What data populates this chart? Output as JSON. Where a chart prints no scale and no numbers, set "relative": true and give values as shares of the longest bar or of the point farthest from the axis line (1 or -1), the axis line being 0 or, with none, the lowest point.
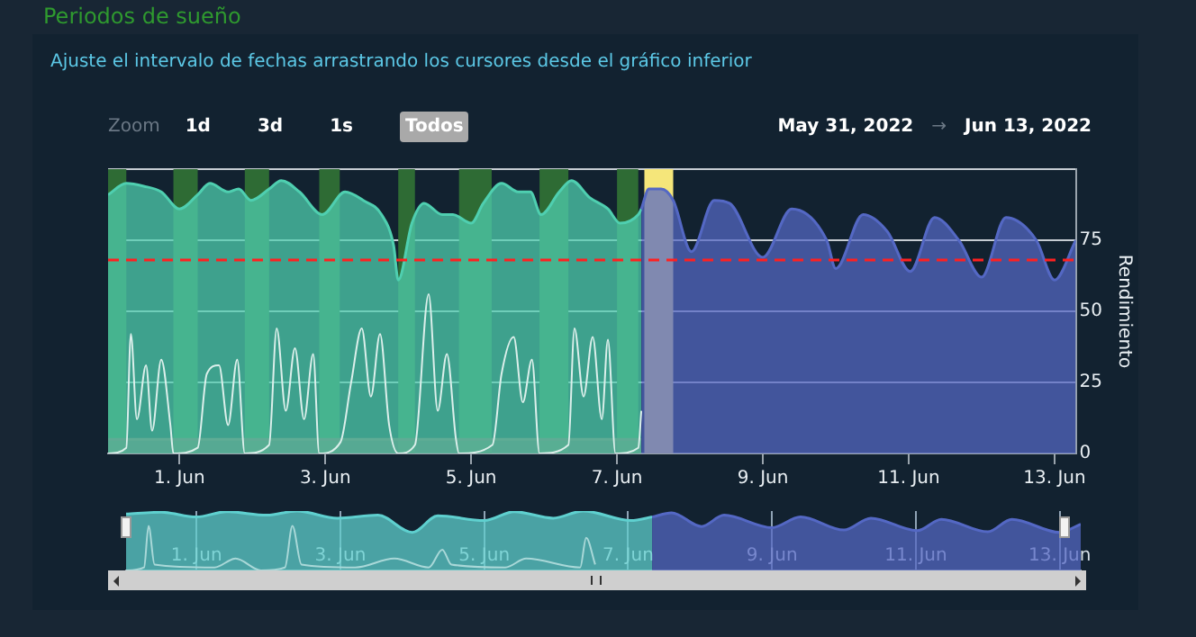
{
  "chart_data": [
    {
      "type": "area",
      "title": "Periodos de sueño",
      "subtitle": "Ajuste el intervalo de fechas arrastrando los cursores desde el gráfico inferior",
      "annotations": [
        "Zoom",
        "1d",
        "3d",
        "1s",
        "Todos",
        "May 31, 2022",
        "→",
        "Jun 13, 2022"
      ],
      "ylabel": "Rendimiento",
      "marker": "none",
      "grid": "y",
      "legend": false,
      "xlim": [
        "2022-05-31T00:30",
        "2022-06-13T07:00"
      ],
      "xticks": [
        {
          "value": "2022-06-01",
          "label": "1. Jun"
        },
        {
          "value": "2022-06-03",
          "label": "3. Jun"
        },
        {
          "value": "2022-06-05",
          "label": "5. Jun"
        },
        {
          "value": "2022-06-07",
          "label": "7. Jun"
        },
        {
          "value": "2022-06-09",
          "label": "9. Jun"
        },
        {
          "value": "2022-06-11",
          "label": "11. Jun"
        },
        {
          "value": "2022-06-13",
          "label": "13. Jun"
        }
      ],
      "ylim": [
        0,
        100
      ],
      "yticks": [
        0,
        25,
        50,
        75,
        {
          "value": 100,
          "label": null
        }
      ],
      "bands": [
        {
          "axis": "x",
          "from": "2022-05-31T00:30",
          "to": "2022-05-31T06:30",
          "color": "#2e6b34"
        },
        {
          "axis": "x",
          "from": "2022-05-31T22:00",
          "to": "2022-06-01T06:00",
          "color": "#2e6b34"
        },
        {
          "axis": "x",
          "from": "2022-06-01T21:30",
          "to": "2022-06-02T05:30",
          "color": "#2e6b34"
        },
        {
          "axis": "x",
          "from": "2022-06-02T22:00",
          "to": "2022-06-03T04:45",
          "color": "#2e6b34"
        },
        {
          "axis": "x",
          "from": "2022-06-04T00:00",
          "to": "2022-06-04T05:30",
          "color": "#2e6b34"
        },
        {
          "axis": "x",
          "from": "2022-06-04T20:00",
          "to": "2022-06-05T06:45",
          "color": "#2e6b34"
        },
        {
          "axis": "x",
          "from": "2022-06-05T22:30",
          "to": "2022-06-06T08:00",
          "color": "#2e6b34"
        },
        {
          "axis": "x",
          "from": "2022-06-07T00:00",
          "to": "2022-06-07T07:00",
          "color": "#2e6b34"
        },
        {
          "axis": "x",
          "from": "2022-06-07T09:00",
          "to": "2022-06-07T18:30",
          "color": "#f5e67a"
        }
      ],
      "ref_lines": [
        {
          "axis": "y",
          "value": 68,
          "color": "#ff2020",
          "line_style": "dashed"
        }
      ],
      "series": [
        {
          "type": "area",
          "color": "#8c4b4b",
          "x": [
            "2022-05-31T00:30",
            "2022-06-07T08:00"
          ],
          "values": [
            5,
            5
          ]
        },
        {
          "type": "area",
          "color": "#4fcfb0",
          "x": [
            "2022-05-31T00:30",
            "2022-05-31T06:30",
            "2022-05-31T12:15",
            "2022-05-31T18:00",
            "2022-06-01T00:00",
            "2022-06-01T06:00",
            "2022-06-01T10:00",
            "2022-06-01T16:00",
            "2022-06-01T19:30",
            "2022-06-01T23:30",
            "2022-06-02T05:30",
            "2022-06-02T09:30",
            "2022-06-02T15:30",
            "2022-06-02T23:00",
            "2022-06-03T06:30",
            "2022-06-03T12:30",
            "2022-06-03T18:30",
            "2022-06-03T22:30",
            "2022-06-04T00:00",
            "2022-06-04T04:30",
            "2022-06-04T08:30",
            "2022-06-04T14:30",
            "2022-06-04T18:00",
            "2022-06-05T00:00",
            "2022-06-05T04:00",
            "2022-06-05T10:00",
            "2022-06-05T15:30",
            "2022-06-05T19:30",
            "2022-06-05T23:00",
            "2022-06-06T05:00",
            "2022-06-06T09:00",
            "2022-06-06T15:00",
            "2022-06-06T21:00",
            "2022-06-07T01:00",
            "2022-06-07T07:00",
            "2022-06-07T08:00"
          ],
          "values": [
            91,
            95,
            94,
            92,
            86,
            91,
            95,
            92,
            93,
            89,
            93,
            96,
            92,
            84,
            92,
            89,
            84,
            73,
            61,
            81,
            88,
            84,
            84,
            81,
            88,
            95,
            92,
            92,
            84,
            92,
            96,
            90,
            86,
            81,
            84,
            86
          ]
        },
        {
          "type": "area",
          "color": "#5468c4",
          "x": [
            "2022-06-07T08:00",
            "2022-06-07T10:30",
            "2022-06-07T14:30",
            "2022-06-07T18:30",
            "2022-06-08T00:30",
            "2022-06-08T08:00",
            "2022-06-08T13:00",
            "2022-06-09T00:00",
            "2022-06-09T09:30",
            "2022-06-09T21:00",
            "2022-06-10T00:00",
            "2022-06-10T09:00",
            "2022-06-10T17:00",
            "2022-06-11T00:30",
            "2022-06-11T08:30",
            "2022-06-11T16:30",
            "2022-06-12T00:00",
            "2022-06-12T08:00",
            "2022-06-12T18:00",
            "2022-06-13T00:00",
            "2022-06-13T07:00"
          ],
          "values": [
            86,
            93,
            93,
            89,
            71,
            89,
            88,
            69,
            86,
            75,
            65,
            84,
            78,
            64,
            83,
            75,
            62,
            83,
            75,
            61,
            75
          ]
        },
        {
          "type": "line",
          "color": "#dcefeb",
          "x": [
            "2022-05-31T00:30",
            "2022-05-31T06:30",
            "2022-05-31T08:00",
            "2022-05-31T10:00",
            "2022-05-31T13:00",
            "2022-05-31T15:00",
            "2022-05-31T18:00",
            "2022-05-31T21:00",
            "2022-05-31T22:00",
            "2022-06-01T06:00",
            "2022-06-01T09:00",
            "2022-06-01T13:00",
            "2022-06-01T16:00",
            "2022-06-01T19:00",
            "2022-06-01T21:30",
            "2022-06-02T05:30",
            "2022-06-02T08:00",
            "2022-06-02T11:00",
            "2022-06-02T14:00",
            "2022-06-02T17:00",
            "2022-06-02T20:00",
            "2022-06-02T22:00",
            "2022-06-03T05:00",
            "2022-06-03T08:30",
            "2022-06-03T12:00",
            "2022-06-03T15:00",
            "2022-06-03T18:00",
            "2022-06-03T21:00",
            "2022-06-04T00:00",
            "2022-06-04T05:30",
            "2022-06-04T10:00",
            "2022-06-04T13:00",
            "2022-06-04T16:00",
            "2022-06-04T19:00",
            "2022-06-04T20:00",
            "2022-06-05T07:00",
            "2022-06-05T10:00",
            "2022-06-05T14:00",
            "2022-06-05T17:00",
            "2022-06-05T20:00",
            "2022-06-05T22:30",
            "2022-06-06T08:00",
            "2022-06-06T10:00",
            "2022-06-06T13:00",
            "2022-06-06T16:00",
            "2022-06-06T19:00",
            "2022-06-06T21:00",
            "2022-06-06T23:30",
            "2022-06-07T07:00",
            "2022-06-07T08:00"
          ],
          "values": [
            0,
            2,
            42,
            12,
            31,
            8,
            33,
            10,
            0,
            2,
            28,
            31,
            10,
            33,
            0,
            3,
            44,
            15,
            37,
            12,
            35,
            0,
            4,
            25,
            44,
            20,
            42,
            10,
            0,
            3,
            56,
            15,
            35,
            5,
            0,
            3,
            28,
            41,
            18,
            33,
            0,
            3,
            44,
            20,
            41,
            12,
            40,
            0,
            2,
            15
          ]
        }
      ]
    },
    {
      "type": "area",
      "relative": true,
      "marker": "none",
      "legend": false,
      "grid": "x",
      "tick_labels": "x",
      "xlim": [
        "2022-05-31T00:30",
        "2022-06-13T07:00"
      ],
      "xticks": [
        {
          "value": "2022-06-01",
          "label": "1. Jun"
        },
        {
          "value": "2022-06-03",
          "label": "3. Jun"
        },
        {
          "value": "2022-06-05",
          "label": "5. Jun"
        },
        {
          "value": "2022-06-07",
          "label": "7. Jun"
        },
        {
          "value": "2022-06-09",
          "label": "9. Jun"
        },
        {
          "value": "2022-06-11",
          "label": "11. Jun"
        },
        {
          "value": "2022-06-13",
          "label": "13. Jun"
        }
      ],
      "series": [
        {
          "type": "area",
          "color": "#5fd0cf",
          "x": [
            "2022-05-31T00:30",
            "2022-05-31T12:15",
            "2022-06-01T00:00",
            "2022-06-01T10:00",
            "2022-06-01T23:30",
            "2022-06-02T09:30",
            "2022-06-02T23:00",
            "2022-06-03T12:30",
            "2022-06-04T00:00",
            "2022-06-04T08:30",
            "2022-06-05T00:00",
            "2022-06-05T10:00",
            "2022-06-05T23:00",
            "2022-06-06T09:00",
            "2022-06-07T01:00",
            "2022-06-07T08:00"
          ],
          "values": [
            0.95,
            0.98,
            0.9,
            0.99,
            0.93,
            1,
            0.88,
            0.93,
            0.64,
            0.92,
            0.84,
            0.99,
            0.88,
            1,
            0.84,
            0.9
          ]
        },
        {
          "type": "area",
          "color": "#5468c4",
          "x": [
            "2022-06-07T08:00",
            "2022-06-07T14:30",
            "2022-06-08T00:30",
            "2022-06-08T08:00",
            "2022-06-09T00:00",
            "2022-06-09T09:30",
            "2022-06-10T00:00",
            "2022-06-10T09:00",
            "2022-06-11T00:30",
            "2022-06-11T08:30",
            "2022-06-12T00:00",
            "2022-06-12T08:00",
            "2022-06-13T00:00",
            "2022-06-13T07:00"
          ],
          "values": [
            0.9,
            0.97,
            0.74,
            0.93,
            0.72,
            0.9,
            0.68,
            0.88,
            0.67,
            0.86,
            0.65,
            0.86,
            0.64,
            0.78
          ]
        },
        {
          "type": "line",
          "color": "#a9d8d8",
          "x": [
            "2022-05-31T00:30",
            "2022-05-31T06:30",
            "2022-05-31T08:00",
            "2022-05-31T10:00",
            "2022-06-01T06:00",
            "2022-06-01T13:00",
            "2022-06-01T21:30",
            "2022-06-02T05:30",
            "2022-06-02T08:00",
            "2022-06-02T11:00",
            "2022-06-03T05:00",
            "2022-06-03T18:00",
            "2022-06-04T05:30",
            "2022-06-04T10:00",
            "2022-06-04T13:00",
            "2022-06-05T07:00",
            "2022-06-05T14:00",
            "2022-06-06T08:00",
            "2022-06-06T10:00",
            "2022-06-06T13:00"
          ],
          "values": [
            0,
            0.05,
            0.75,
            0.1,
            0.05,
            0.2,
            0,
            0.05,
            0.75,
            0.1,
            0.05,
            0.2,
            0.05,
            0.35,
            0.1,
            0.05,
            0.2,
            0.05,
            0.55,
            0.1
          ]
        }
      ]
    }
  ]
}
